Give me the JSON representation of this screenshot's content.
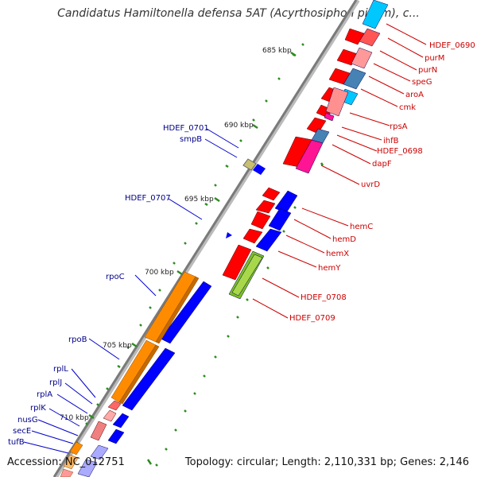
{
  "title": "Candidatus Hamiltonella defensa 5AT (Acyrthosiphon pisum), c...",
  "footer": {
    "accession": "Accession: NC_012751",
    "topology": "Topology: circular; Length: 2,110,331 bp; Genes: 2,146"
  },
  "ticks": [
    {
      "label": "685 kbp"
    },
    {
      "label": "690 kbp"
    },
    {
      "label": "695 kbp"
    },
    {
      "label": "700 kbp"
    },
    {
      "label": "705 kbp"
    },
    {
      "label": "710 kbp"
    }
  ],
  "genes_left": [
    {
      "label": "HDEF_0701"
    },
    {
      "label": "smpB"
    },
    {
      "label": "HDEF_0707"
    },
    {
      "label": "rpoC"
    },
    {
      "label": "rpoB"
    },
    {
      "label": "rplL"
    },
    {
      "label": "rplJ"
    },
    {
      "label": "rplA"
    },
    {
      "label": "rplK"
    },
    {
      "label": "nusG"
    },
    {
      "label": "secE"
    },
    {
      "label": "tufB"
    }
  ],
  "genes_right": [
    {
      "label": "HDEF_0690"
    },
    {
      "label": "purM"
    },
    {
      "label": "purN"
    },
    {
      "label": "speG"
    },
    {
      "label": "aroA"
    },
    {
      "label": "cmk"
    },
    {
      "label": "rpsA"
    },
    {
      "label": "ihfB"
    },
    {
      "label": "HDEF_0698"
    },
    {
      "label": "dapF"
    },
    {
      "label": "uvrD"
    },
    {
      "label": "hemC"
    },
    {
      "label": "hemD"
    },
    {
      "label": "hemX"
    },
    {
      "label": "hemY"
    },
    {
      "label": "HDEF_0708"
    },
    {
      "label": "HDEF_0709"
    }
  ],
  "colors": {
    "backbone": "#7a7a7a",
    "left_label": "#00008b",
    "right_label": "#cc0000",
    "cds_forward": "#ff0000",
    "cds_reverse": "#0000ff",
    "rpo": "#ff8c00"
  }
}
